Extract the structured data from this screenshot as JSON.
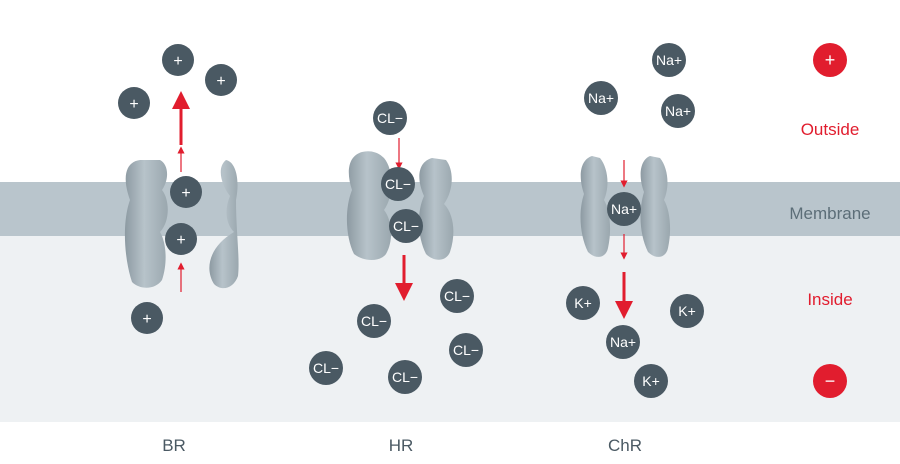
{
  "labels": {
    "outside": "Outside",
    "membrane": "Membrane",
    "inside": "Inside",
    "charge_plus": "+",
    "charge_minus": "−"
  },
  "proteins": [
    {
      "id": "br",
      "name": "BR"
    },
    {
      "id": "hr",
      "name": "HR"
    },
    {
      "id": "chr",
      "name": "ChR"
    }
  ],
  "ions": {
    "br": [
      "+",
      "+",
      "+",
      "+",
      "+",
      "+"
    ],
    "hr": [
      "CL−",
      "CL−",
      "CL−",
      "CL−",
      "CL−",
      "CL−",
      "CL−",
      "CL−"
    ],
    "chr": [
      "Na+",
      "Na+",
      "Na+",
      "Na+",
      "Na+",
      "K+",
      "K+",
      "K+"
    ]
  },
  "colors": {
    "ion": "#4a5963",
    "accent_red": "#e11d2e",
    "membrane": "#b9c5cc",
    "inside_bg": "#eef1f3",
    "protein": "#a9b5bc",
    "label_gray": "#5c6e78"
  }
}
